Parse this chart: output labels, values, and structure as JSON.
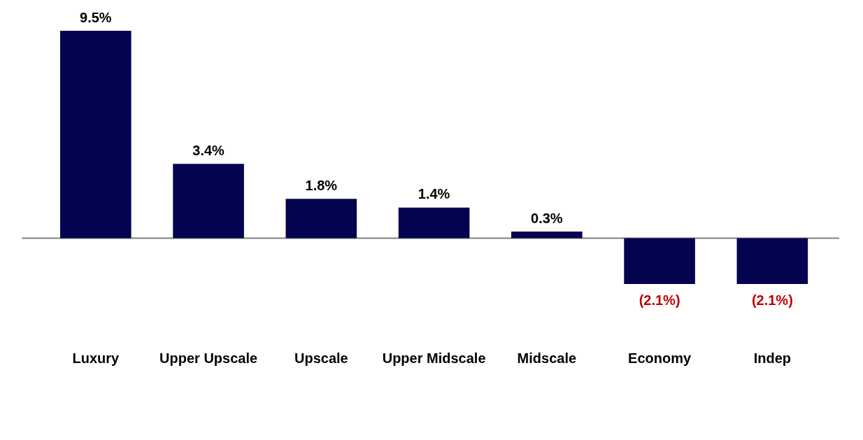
{
  "chart_data": {
    "type": "bar",
    "categories": [
      "Luxury",
      "Upper Upscale",
      "Upscale",
      "Upper Midscale",
      "Midscale",
      "Economy",
      "Indep"
    ],
    "series": [
      {
        "color": "#03034f",
        "values": [
          9.5,
          3.4,
          1.8,
          1.4,
          0.3,
          -2.1,
          -2.1
        ],
        "value_labels": [
          "9.5%",
          "3.4%",
          "1.8%",
          "1.4%",
          "0.3%",
          "(2.1%)",
          "(2.1%)"
        ]
      }
    ],
    "tick_labels": "x",
    "grid": false,
    "legend": false,
    "ref_lines": [
      {
        "axis": "y",
        "value": 0,
        "color": "#808080"
      }
    ]
  }
}
